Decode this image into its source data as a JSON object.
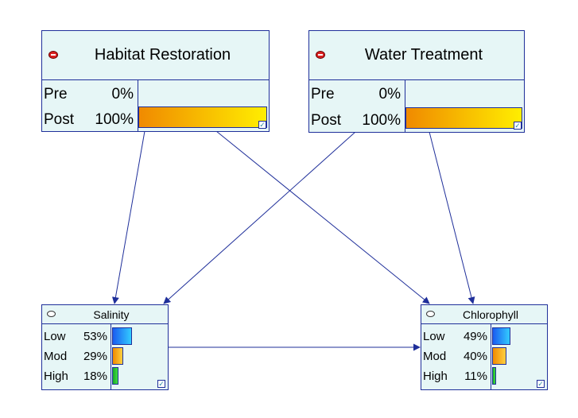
{
  "colors": {
    "node_fill": "#e6f6f6",
    "node_border": "#1f2f9a",
    "edge": "#1f2f9a",
    "decision_marker": "#d82020",
    "bar_blue": "#1a5cf0",
    "bar_orange": "#f08a00",
    "bar_green": "#1aa82a",
    "bar_yellow": "#ffee00"
  },
  "nodes": {
    "habitat": {
      "title": "Habitat Restoration",
      "marker_icon": "decision-oval-icon",
      "states": [
        {
          "label": "Pre",
          "percent": "0%",
          "value": 0.0
        },
        {
          "label": "Post",
          "percent": "100%",
          "value": 1.0
        }
      ]
    },
    "water": {
      "title": "Water Treatment",
      "marker_icon": "decision-oval-icon",
      "states": [
        {
          "label": "Pre",
          "percent": "0%",
          "value": 0.0
        },
        {
          "label": "Post",
          "percent": "100%",
          "value": 1.0
        }
      ]
    },
    "salinity": {
      "title": "Salinity",
      "marker_icon": "chance-oval-icon",
      "states": [
        {
          "label": "Low",
          "percent": "53%",
          "value": 0.53
        },
        {
          "label": "Mod",
          "percent": "29%",
          "value": 0.29
        },
        {
          "label": "High",
          "percent": "18%",
          "value": 0.18
        }
      ]
    },
    "chlorophyll": {
      "title": "Chlorophyll",
      "marker_icon": "chance-oval-icon",
      "states": [
        {
          "label": "Low",
          "percent": "49%",
          "value": 0.49
        },
        {
          "label": "Mod",
          "percent": "40%",
          "value": 0.4
        },
        {
          "label": "High",
          "percent": "11%",
          "value": 0.11
        }
      ]
    }
  },
  "edges": [
    {
      "from": "Habitat Restoration",
      "to": "Salinity"
    },
    {
      "from": "Habitat Restoration",
      "to": "Chlorophyll"
    },
    {
      "from": "Water Treatment",
      "to": "Salinity"
    },
    {
      "from": "Water Treatment",
      "to": "Chlorophyll"
    },
    {
      "from": "Salinity",
      "to": "Chlorophyll"
    }
  ]
}
